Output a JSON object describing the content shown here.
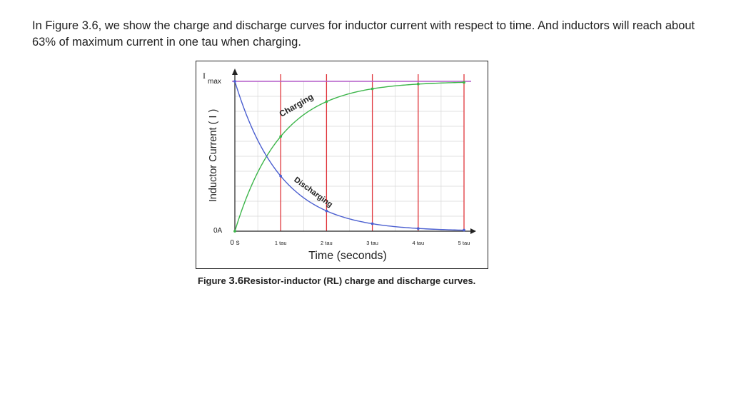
{
  "slide": {
    "text": "In Figure 3.6, we show the charge and discharge curves for inductor current with respect to time. And inductors will reach about 63% of maximum current in one tau when charging."
  },
  "caption": {
    "prefix": "Figure",
    "number": "3.6",
    "text": "Resistor-inductor (RL) charge and discharge curves."
  },
  "chart_data": {
    "type": "line",
    "xlabel": "Time (seconds)",
    "ylabel": "Inductor Current ( I )",
    "x_ticks": [
      "0 s",
      "1 tau",
      "2 tau",
      "3 tau",
      "4 tau",
      "5 tau"
    ],
    "y_ticks": {
      "min_label": "0A",
      "max_label_main": "I",
      "max_label_sub": "max"
    },
    "xlim": [
      0,
      5
    ],
    "ylim": [
      0,
      1
    ],
    "x": [
      0,
      1,
      2,
      3,
      4,
      5
    ],
    "series": [
      {
        "name": "Charging",
        "values": [
          0,
          0.632,
          0.865,
          0.95,
          0.982,
          0.993
        ]
      },
      {
        "name": "Discharging",
        "values": [
          1,
          0.368,
          0.135,
          0.05,
          0.018,
          0.007
        ]
      }
    ],
    "grid": true,
    "colors": {
      "charging": "#3cb54a",
      "discharging": "#4b5fd0",
      "tau_lines": "#e0353b",
      "max_line": "#b45cc8",
      "grid": "#d8d8d8"
    }
  }
}
